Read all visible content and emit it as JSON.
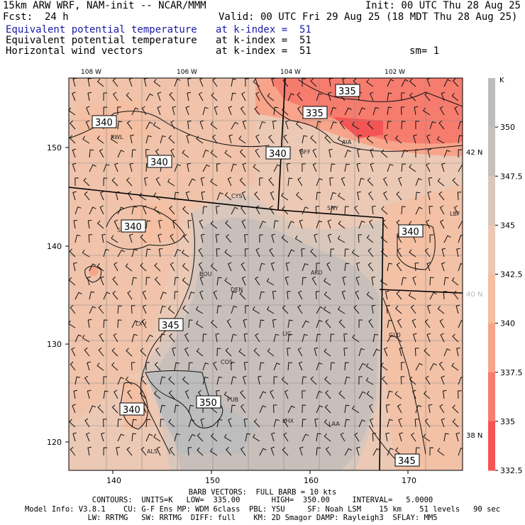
{
  "header": {
    "model": "15km ARW WRF, NAM-init -- NCAR/MMM",
    "init": "Init: 00 UTC Thu 28 Aug 25",
    "fcst": "Fcst:  24 h",
    "valid": "Valid: 00 UTC Fri 29 Aug 25 (18 MDT Thu 28 Aug 25)",
    "lines": [
      {
        "field": "Equivalent potential temperature",
        "level": "at k-index =  51",
        "extra": ""
      },
      {
        "field": "Equivalent potential temperature",
        "level": "at k-index =  51",
        "extra": ""
      },
      {
        "field": "Horizontal wind vectors",
        "level": "at k-index =  51",
        "extra": "sm= 1"
      }
    ]
  },
  "map": {
    "lon_labels": [
      "108 W",
      "106 W",
      "104 W",
      "102 W"
    ],
    "lat_labels_right": [
      "42 N",
      "40 N",
      "38 N"
    ],
    "grid_y_labels": [
      "150",
      "140",
      "130",
      "120"
    ],
    "grid_x_labels": [
      "140",
      "150",
      "160",
      "170"
    ],
    "stations": [
      "RWL",
      "BFF",
      "AIA",
      "CYS",
      "SNY",
      "LBF",
      "SBS",
      "BOU",
      "DEN",
      "AKO",
      "LXV",
      "LIC",
      "GLD",
      "COS",
      "PUB",
      "LHX",
      "LAA",
      "ALS"
    ],
    "contour_labels": [
      "335",
      "335",
      "340",
      "340",
      "340",
      "340",
      "340",
      "345",
      "350",
      "340",
      "345"
    ]
  },
  "colorbar": {
    "unit": "K",
    "ticks": [
      "350",
      "347.5",
      "345",
      "342.5",
      "340",
      "337.5",
      "335",
      "332.5"
    ],
    "colors": [
      "#bdbdbd",
      "#c8bfbb",
      "#d9c7bc",
      "#ecc9b5",
      "#f4bfa2",
      "#f7a48a",
      "#f67c6e",
      "#f55454"
    ]
  },
  "footer": {
    "barb": "BARB VECTORS:  FULL BARB = 10 kts",
    "contours": "CONTOURS:  UNITS=K   LOW=  335.00       HIGH=  350.00     INTERVAL=   5.0000",
    "model1": "Model Info: V3.8.1    CU: G-F Ens MP: WDM 6class  PBL: YSU     SF: Noah LSM    15 km    51 levels   90 sec",
    "model2": "LW: RRTMG   SW: RRTMG  DIFF: full    KM: 2D Smagor DAMP: Rayleigh3  SFLAY: MM5"
  }
}
